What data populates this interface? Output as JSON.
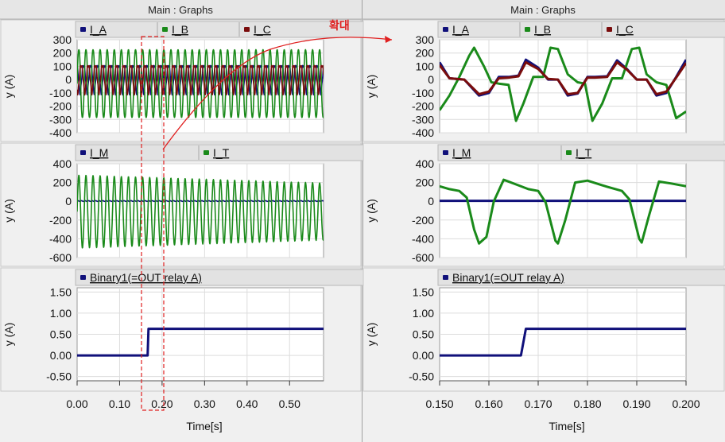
{
  "window": {
    "left_title": "Main : Graphs",
    "right_title": "Main : Graphs",
    "zoom_label": "확대"
  },
  "colors": {
    "I_A": "#10107a",
    "I_B": "#1a8a1a",
    "I_C": "#7a0c0c",
    "I_M": "#10107a",
    "I_T": "#1a8a1a",
    "Binary1": "#10107a",
    "zoom_marker": "#e02020"
  },
  "chart_data": [
    {
      "id": "left-currents-abc",
      "type": "line",
      "title": "",
      "xlabel": "",
      "ylabel": "y (A)",
      "xlim": [
        0,
        0.58
      ],
      "ylim": [
        -400,
        300
      ],
      "yticks": [
        "300",
        "200",
        "100",
        "0",
        "-100",
        "-200",
        "-300",
        "-400"
      ],
      "legend": [
        "I_A",
        "I_B",
        "I_C"
      ],
      "series": [
        {
          "name": "I_A",
          "description": "oscillation ~3 cycles per 0.05 s, envelope roughly -120 to 150 A"
        },
        {
          "name": "I_B",
          "description": "large oscillation, envelope roughly -310 to 250 A"
        },
        {
          "name": "I_C",
          "description": "oscillation, envelope roughly -120 to 150 A"
        }
      ]
    },
    {
      "id": "right-currents-abc",
      "type": "line",
      "title": "",
      "xlabel": "",
      "ylabel": "y (A)",
      "xlim": [
        0.15,
        0.2
      ],
      "ylim": [
        -400,
        300
      ],
      "yticks": [
        "300",
        "200",
        "100",
        "0",
        "-100",
        "-200",
        "-300",
        "-400"
      ],
      "legend": [
        "I_A",
        "I_B",
        "I_C"
      ],
      "series": [
        {
          "name": "I_A",
          "x": [
            0.15,
            0.152,
            0.155,
            0.158,
            0.16,
            0.162,
            0.164,
            0.166,
            0.1675,
            0.17,
            0.172,
            0.174,
            0.176,
            0.178,
            0.18,
            0.1815,
            0.184,
            0.186,
            0.188,
            0.19,
            0.192,
            0.194,
            0.196,
            0.198,
            0.2
          ],
          "y": [
            130,
            10,
            0,
            -120,
            -100,
            20,
            20,
            30,
            150,
            90,
            0,
            0,
            -120,
            -105,
            20,
            20,
            25,
            145,
            80,
            0,
            0,
            -120,
            -100,
            20,
            150
          ]
        },
        {
          "name": "I_B",
          "x": [
            0.15,
            0.152,
            0.154,
            0.156,
            0.157,
            0.159,
            0.1605,
            0.162,
            0.164,
            0.1655,
            0.167,
            0.169,
            0.171,
            0.1725,
            0.174,
            0.176,
            0.178,
            0.1795,
            0.181,
            0.183,
            0.185,
            0.187,
            0.189,
            0.1905,
            0.192,
            0.194,
            0.196,
            0.198,
            0.2
          ],
          "y": [
            -230,
            -120,
            20,
            180,
            240,
            100,
            -20,
            -30,
            -40,
            -310,
            -180,
            20,
            20,
            240,
            230,
            40,
            -20,
            -30,
            -310,
            -180,
            10,
            10,
            230,
            240,
            40,
            -20,
            -40,
            -290,
            -240
          ]
        },
        {
          "name": "I_C",
          "x": [
            0.15,
            0.152,
            0.155,
            0.158,
            0.16,
            0.162,
            0.164,
            0.166,
            0.1675,
            0.17,
            0.172,
            0.174,
            0.176,
            0.178,
            0.18,
            0.1815,
            0.184,
            0.186,
            0.188,
            0.19,
            0.192,
            0.194,
            0.196,
            0.198,
            0.2
          ],
          "y": [
            110,
            10,
            0,
            -110,
            -90,
            10,
            15,
            25,
            130,
            80,
            5,
            0,
            -110,
            -100,
            15,
            15,
            20,
            130,
            75,
            0,
            0,
            -110,
            -90,
            15,
            125
          ]
        }
      ]
    },
    {
      "id": "left-currents-mt",
      "type": "line",
      "title": "",
      "xlabel": "",
      "ylabel": "y (A)",
      "xlim": [
        0,
        0.58
      ],
      "ylim": [
        -600,
        400
      ],
      "yticks": [
        "400",
        "200",
        "0",
        "-200",
        "-400",
        "-600"
      ],
      "legend": [
        "I_M",
        "I_T"
      ],
      "series": [
        {
          "name": "I_M",
          "description": "flat near 0 A"
        },
        {
          "name": "I_T",
          "description": "oscillation, envelope roughly -500 to 280 A decaying to about -400 to 180 A"
        }
      ]
    },
    {
      "id": "right-currents-mt",
      "type": "line",
      "title": "",
      "xlabel": "",
      "ylabel": "y (A)",
      "xlim": [
        0.15,
        0.2
      ],
      "ylim": [
        -600,
        400
      ],
      "yticks": [
        "400",
        "200",
        "0",
        "-200",
        "-400",
        "-600"
      ],
      "legend": [
        "I_M",
        "I_T"
      ],
      "series": [
        {
          "name": "I_M",
          "x": [
            0.15,
            0.2
          ],
          "y": [
            5,
            5
          ]
        },
        {
          "name": "I_T",
          "x": [
            0.15,
            0.152,
            0.154,
            0.1555,
            0.157,
            0.158,
            0.1595,
            0.161,
            0.163,
            0.166,
            0.168,
            0.17,
            0.1715,
            0.1735,
            0.174,
            0.1755,
            0.1775,
            0.18,
            0.183,
            0.185,
            0.187,
            0.1885,
            0.1905,
            0.191,
            0.1925,
            0.1945,
            0.197,
            0.2
          ],
          "y": [
            160,
            130,
            110,
            40,
            -300,
            -450,
            -380,
            0,
            230,
            170,
            130,
            110,
            -10,
            -420,
            -450,
            -200,
            200,
            220,
            170,
            140,
            110,
            20,
            -400,
            -440,
            -150,
            210,
            190,
            160
          ]
        }
      ]
    },
    {
      "id": "left-binary",
      "type": "line",
      "title": "",
      "xlabel": "Time[s]",
      "ylabel": "y (A)",
      "xlim": [
        0,
        0.58
      ],
      "ylim": [
        -0.6,
        1.6
      ],
      "yticks": [
        "1.50",
        "1.00",
        "0.50",
        "0.00",
        "-0.50"
      ],
      "xticks": [
        "0.00",
        "0.10",
        "0.20",
        "0.30",
        "0.40",
        "0.50"
      ],
      "legend": [
        "Binary1(=OUT relay A)"
      ],
      "series": [
        {
          "name": "Binary1(=OUT relay A)",
          "x": [
            0,
            0.166,
            0.168,
            0.58
          ],
          "y": [
            0,
            0,
            0.63,
            0.63
          ]
        }
      ]
    },
    {
      "id": "right-binary",
      "type": "line",
      "title": "",
      "xlabel": "Time[s]",
      "ylabel": "y (A)",
      "xlim": [
        0.15,
        0.2
      ],
      "ylim": [
        -0.6,
        1.6
      ],
      "yticks": [
        "1.50",
        "1.00",
        "0.50",
        "0.00",
        "-0.50"
      ],
      "xticks": [
        "0.150",
        "0.160",
        "0.170",
        "0.180",
        "0.190",
        "0.200"
      ],
      "legend": [
        "Binary1(=OUT relay A)"
      ],
      "series": [
        {
          "name": "Binary1(=OUT relay A)",
          "x": [
            0.15,
            0.1665,
            0.1675,
            0.2
          ],
          "y": [
            0,
            0,
            0.63,
            0.63
          ]
        }
      ]
    }
  ]
}
